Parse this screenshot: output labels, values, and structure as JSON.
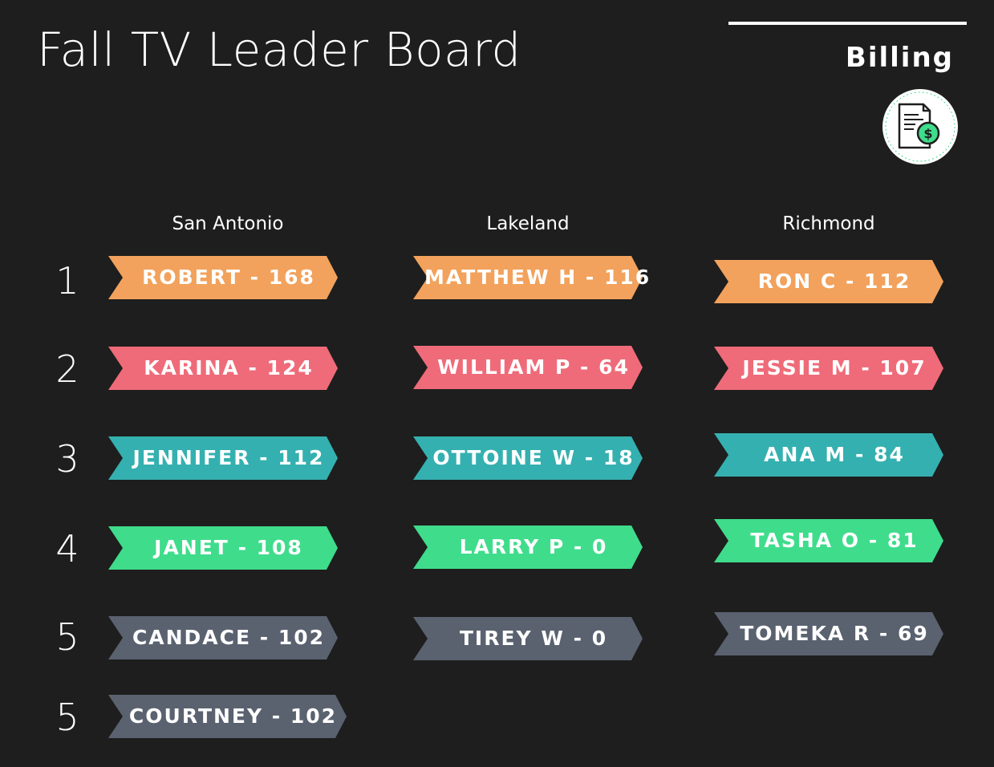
{
  "header": {
    "title": "Fall TV Leader Board",
    "category": "Billing",
    "category_icon": "billing-document-dollar-icon"
  },
  "colors": {
    "background": "#1e1e1e",
    "rank_1": "#f2a25c",
    "rank_2": "#ef6b79",
    "rank_3": "#35b0b0",
    "rank_4": "#3fdc8c",
    "rank_5": "#5a6270"
  },
  "columns": [
    {
      "name": "San Antonio"
    },
    {
      "name": "Lakeland"
    },
    {
      "name": "Richmond"
    }
  ],
  "ranks": [
    "1",
    "2",
    "3",
    "4",
    "5",
    "5"
  ],
  "entries": [
    [
      "ROBERT - 168",
      "KARINA - 124",
      "JENNIFER - 112",
      "JANET - 108",
      "CANDACE - 102",
      "COURTNEY - 102"
    ],
    [
      "MATTHEW H - 116",
      "WILLIAM P - 64",
      "OTTOINE W - 18",
      "LARRY P - 0",
      "TIREY W - 0"
    ],
    [
      "RON C - 112",
      "JESSIE M - 107",
      "ANA M - 84",
      "TASHA O - 81",
      "TOMEKA R - 69"
    ]
  ]
}
